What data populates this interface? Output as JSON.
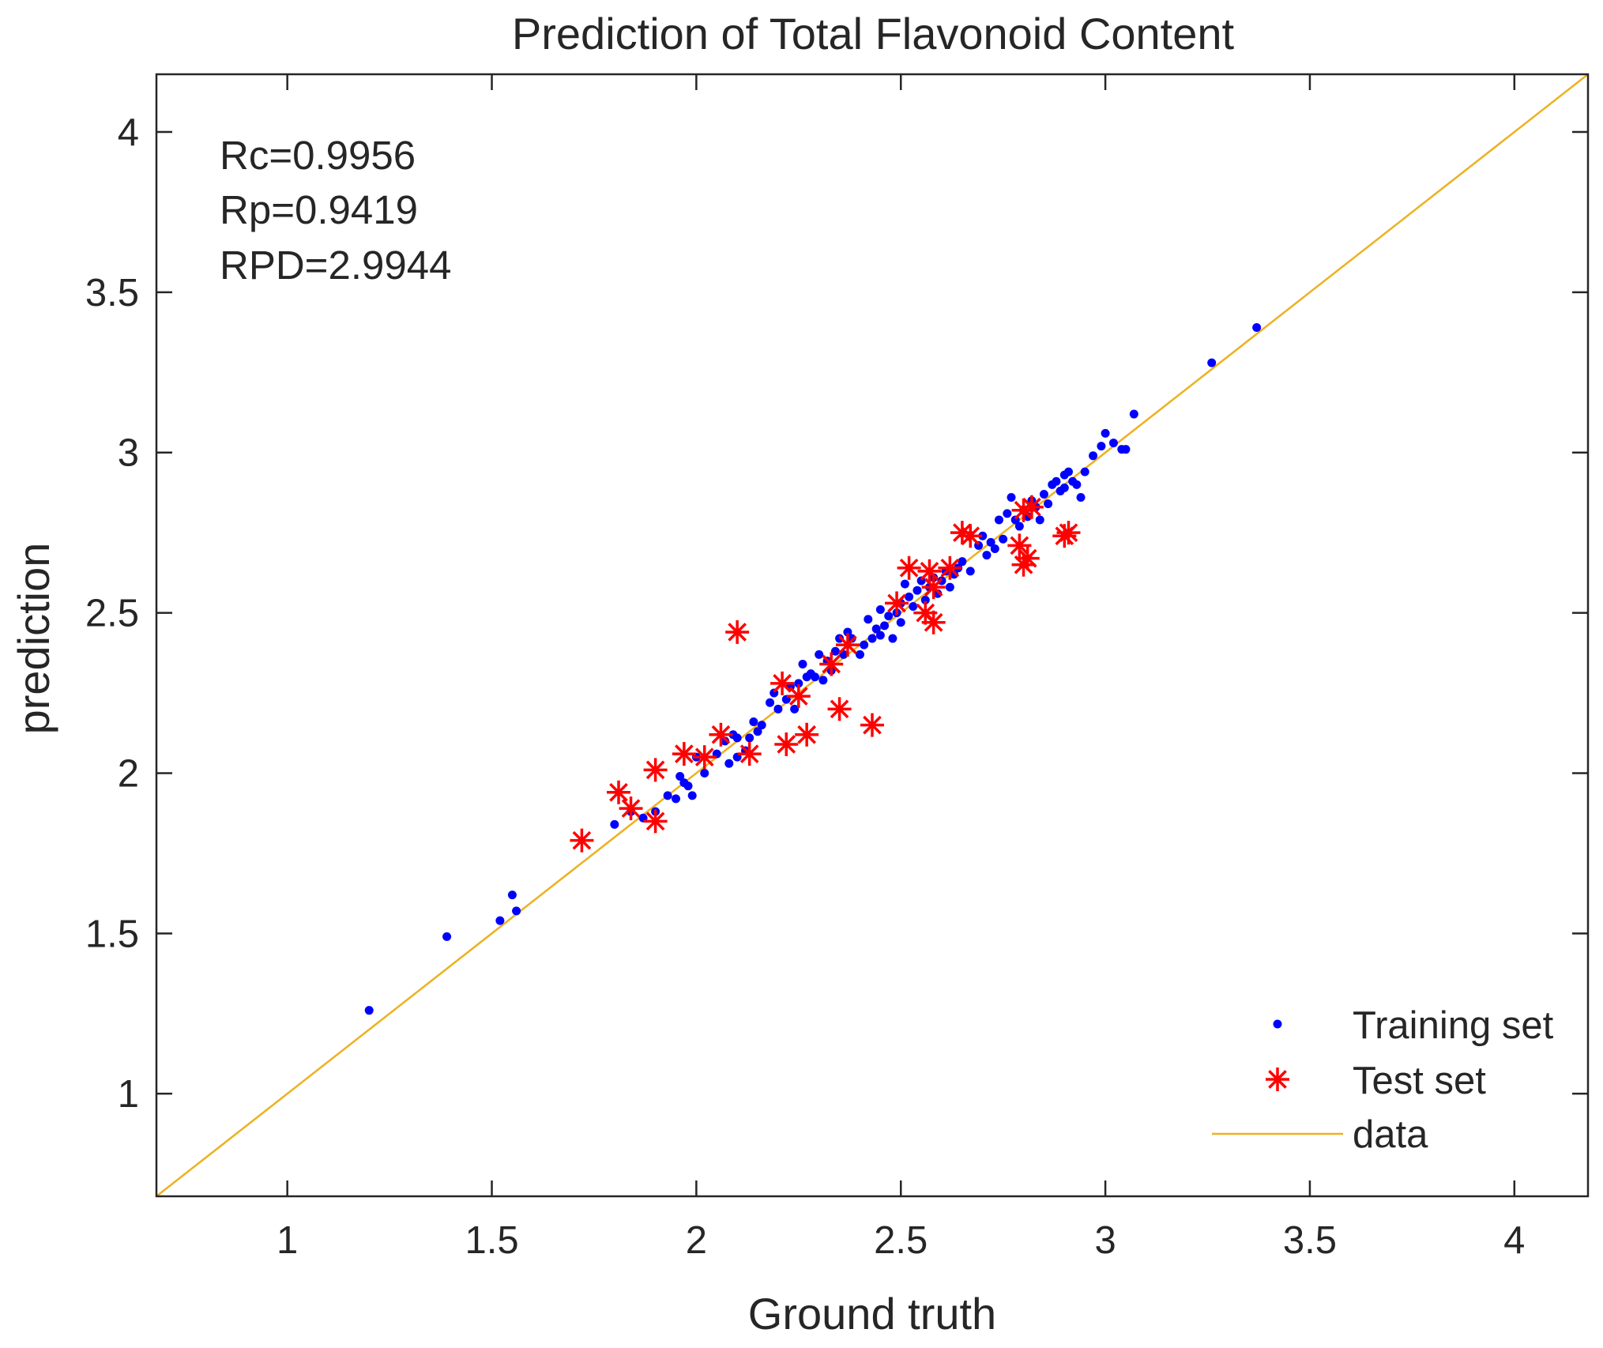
{
  "chart_data": {
    "type": "scatter",
    "title": "Prediction of Total Flavonoid Content",
    "xlabel": "Ground truth",
    "ylabel": "prediction",
    "xlim": [
      0.68,
      4.18
    ],
    "ylim": [
      0.68,
      4.18
    ],
    "x_ticks": [
      "1",
      "1.5",
      "2",
      "2.5",
      "3",
      "3.5",
      "4"
    ],
    "y_ticks": [
      "1",
      "1.5",
      "2",
      "2.5",
      "3",
      "3.5",
      "4"
    ],
    "tick_values": [
      1,
      1.5,
      2,
      2.5,
      3,
      3.5,
      4
    ],
    "grid": false,
    "legend_position": "bottom-right",
    "annotations": [
      "Rc=0.9956",
      "Rp=0.9419",
      "RPD=2.9944"
    ],
    "colors": {
      "training": "#0000ff",
      "test": "#ff0000",
      "line": "#edb120",
      "axis": "#262626"
    },
    "series": [
      {
        "name": "Training set",
        "marker": "dot",
        "x": [
          1.2,
          1.39,
          1.52,
          1.55,
          1.56,
          1.8,
          1.84,
          1.87,
          1.9,
          1.93,
          1.95,
          1.96,
          1.97,
          1.98,
          1.99,
          2.0,
          2.02,
          2.05,
          2.07,
          2.08,
          2.09,
          2.1,
          2.1,
          2.12,
          2.13,
          2.14,
          2.15,
          2.16,
          2.18,
          2.19,
          2.2,
          2.22,
          2.23,
          2.24,
          2.25,
          2.26,
          2.27,
          2.28,
          2.29,
          2.3,
          2.31,
          2.32,
          2.33,
          2.34,
          2.35,
          2.36,
          2.37,
          2.38,
          2.4,
          2.41,
          2.42,
          2.43,
          2.44,
          2.45,
          2.45,
          2.46,
          2.47,
          2.48,
          2.49,
          2.5,
          2.5,
          2.51,
          2.52,
          2.53,
          2.54,
          2.55,
          2.56,
          2.57,
          2.58,
          2.59,
          2.6,
          2.61,
          2.62,
          2.63,
          2.64,
          2.65,
          2.67,
          2.69,
          2.7,
          2.71,
          2.72,
          2.73,
          2.74,
          2.75,
          2.76,
          2.77,
          2.78,
          2.79,
          2.8,
          2.81,
          2.82,
          2.83,
          2.84,
          2.85,
          2.86,
          2.87,
          2.88,
          2.89,
          2.9,
          2.9,
          2.91,
          2.92,
          2.93,
          2.94,
          2.95,
          2.97,
          2.99,
          3.0,
          3.02,
          3.04,
          3.05,
          3.07,
          3.26,
          3.37
        ],
        "y": [
          1.26,
          1.49,
          1.54,
          1.62,
          1.57,
          1.84,
          1.88,
          1.86,
          1.88,
          1.93,
          1.92,
          1.99,
          1.97,
          1.96,
          1.93,
          2.05,
          2.0,
          2.06,
          2.1,
          2.03,
          2.12,
          2.05,
          2.11,
          2.07,
          2.11,
          2.16,
          2.13,
          2.15,
          2.22,
          2.25,
          2.2,
          2.23,
          2.27,
          2.2,
          2.28,
          2.34,
          2.3,
          2.31,
          2.3,
          2.37,
          2.29,
          2.35,
          2.32,
          2.38,
          2.42,
          2.37,
          2.44,
          2.42,
          2.37,
          2.4,
          2.48,
          2.42,
          2.45,
          2.43,
          2.51,
          2.46,
          2.49,
          2.42,
          2.5,
          2.53,
          2.47,
          2.59,
          2.55,
          2.52,
          2.57,
          2.6,
          2.54,
          2.58,
          2.61,
          2.56,
          2.6,
          2.63,
          2.58,
          2.62,
          2.64,
          2.66,
          2.63,
          2.71,
          2.74,
          2.68,
          2.72,
          2.7,
          2.79,
          2.73,
          2.81,
          2.86,
          2.79,
          2.77,
          2.82,
          2.8,
          2.85,
          2.83,
          2.79,
          2.87,
          2.84,
          2.9,
          2.91,
          2.88,
          2.93,
          2.89,
          2.94,
          2.91,
          2.9,
          2.86,
          2.94,
          2.99,
          3.02,
          3.06,
          3.03,
          3.01,
          3.01,
          3.12,
          3.28,
          3.39
        ]
      },
      {
        "name": "Test set",
        "marker": "asterisk",
        "x": [
          1.72,
          1.81,
          1.84,
          1.9,
          1.9,
          1.97,
          2.02,
          2.06,
          2.1,
          2.13,
          2.21,
          2.22,
          2.25,
          2.27,
          2.33,
          2.35,
          2.37,
          2.43,
          2.49,
          2.52,
          2.56,
          2.57,
          2.58,
          2.58,
          2.62,
          2.65,
          2.67,
          2.79,
          2.8,
          2.8,
          2.81,
          2.82,
          2.9,
          2.91
        ],
        "y": [
          1.79,
          1.94,
          1.89,
          1.85,
          2.01,
          2.06,
          2.05,
          2.12,
          2.44,
          2.06,
          2.28,
          2.09,
          2.24,
          2.12,
          2.34,
          2.2,
          2.4,
          2.15,
          2.53,
          2.64,
          2.5,
          2.63,
          2.47,
          2.58,
          2.64,
          2.75,
          2.74,
          2.71,
          2.65,
          2.82,
          2.67,
          2.83,
          2.74,
          2.75
        ]
      },
      {
        "name": "data",
        "marker": "line",
        "x": [
          0.68,
          4.18
        ],
        "y": [
          0.68,
          4.18
        ]
      }
    ]
  }
}
